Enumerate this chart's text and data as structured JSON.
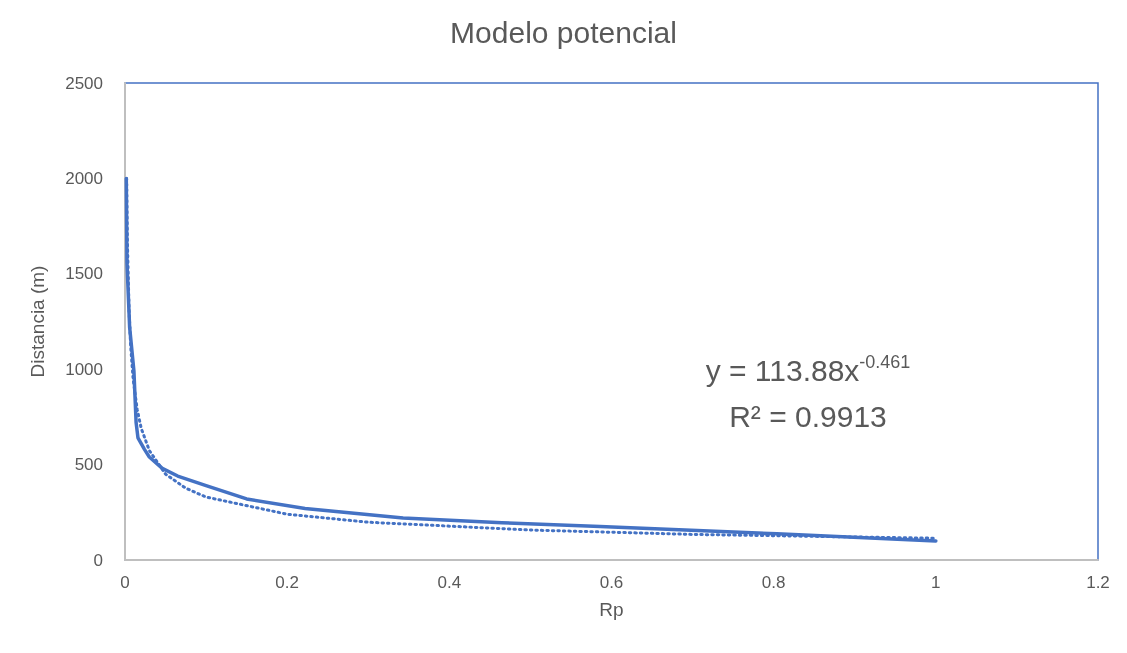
{
  "chart_data": {
    "type": "line",
    "title": "Modelo potencial",
    "xlabel": "Rp",
    "ylabel": "Distancia (m)",
    "xlim": [
      0,
      1.2
    ],
    "xticks": [
      0,
      0.2,
      0.4,
      0.6,
      0.8,
      1,
      1.2
    ],
    "ylim": [
      0,
      2500
    ],
    "yticks": [
      0,
      500,
      1000,
      1500,
      2000,
      2500
    ],
    "grid": false,
    "marker": "none",
    "annotations": [
      "y = 113.88x$^{-0.461}$",
      "R² = 0.9913"
    ],
    "series": [
      {
        "color": "#4472c4",
        "line_style": "solid",
        "x": [
          0.0016,
          0.0024,
          0.0057,
          0.011,
          0.012,
          0.0137,
          0.016,
          0.024,
          0.03,
          0.046,
          0.065,
          0.1,
          0.15,
          0.222,
          0.343,
          0.465,
          0.586,
          0.804,
          1
        ],
        "values": [
          2000,
          1560,
          1220,
          990,
          890,
          720,
          640,
          580,
          540,
          480,
          440,
          390,
          320,
          270,
          220,
          195,
          175,
          137,
          100
        ]
      },
      {
        "color": "#4472c4",
        "line_style": "dotted",
        "x": [
          0.002,
          0.003,
          0.005,
          0.007,
          0.01,
          0.015,
          0.02,
          0.03,
          0.05,
          0.075,
          0.1,
          0.2,
          0.3,
          0.5,
          0.7,
          1
        ],
        "values": [
          2000,
          1660,
          1310,
          1120,
          950,
          790,
          690,
          574,
          450,
          376,
          330,
          240,
          198,
          157,
          134,
          114
        ]
      }
    ]
  }
}
